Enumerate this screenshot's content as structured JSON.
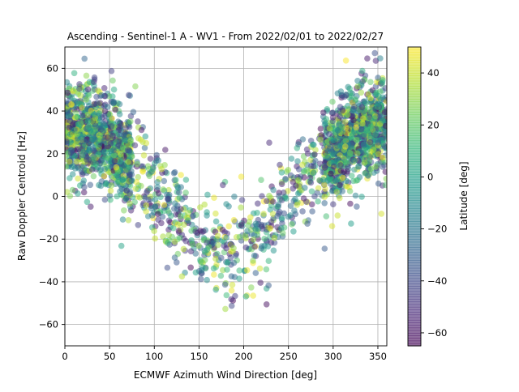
{
  "chart_data": {
    "type": "scatter",
    "title": "Ascending - Sentinel-1 A - WV1 - From 2022/02/01 to 2022/02/27",
    "xlabel": "ECMWF Azimuth Wind Direction [deg]",
    "ylabel": "Raw Doppler Centroid [Hz]",
    "xlim": [
      0,
      360
    ],
    "ylim": [
      -70,
      70
    ],
    "xticks": [
      0,
      50,
      100,
      150,
      200,
      250,
      300,
      350
    ],
    "yticks": [
      -60,
      -40,
      -20,
      0,
      20,
      40,
      60
    ],
    "grid": true,
    "marker_alpha": 0.5,
    "colorbar": {
      "label": "Latitude [deg]",
      "range": [
        -65,
        50
      ],
      "ticks": [
        -60,
        -40,
        -20,
        0,
        20,
        40
      ],
      "colormap": "viridis"
    },
    "series": [
      {
        "model": "scattered points following a cosine-like curve in wind direction",
        "mean_curve": {
          "x": [
            0,
            30,
            60,
            90,
            120,
            150,
            180,
            210,
            240,
            270,
            300,
            330,
            360
          ],
          "y": [
            33,
            30,
            20,
            8,
            -8,
            -20,
            -25,
            -20,
            -8,
            8,
            20,
            30,
            33
          ]
        },
        "spread_hz": 11,
        "point_count": 2600
      }
    ]
  }
}
